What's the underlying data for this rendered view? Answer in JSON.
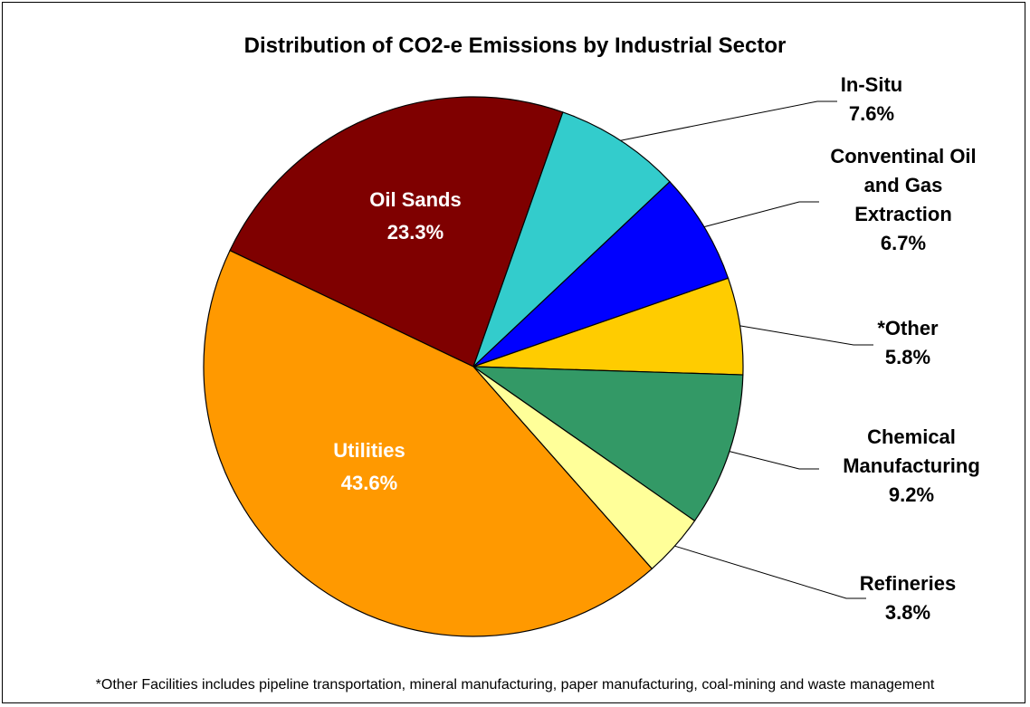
{
  "chart_data": {
    "type": "pie",
    "title": "Distribution of CO2-e Emissions by Industrial Sector",
    "slices": [
      {
        "label": "Oil Sands",
        "value": 23.3,
        "value_label": "23.3%",
        "color": "#7f0000",
        "label_placement": "inside",
        "label_color": "#ffffff"
      },
      {
        "label": "In-Situ",
        "value": 7.6,
        "value_label": "7.6%",
        "color": "#33cccc",
        "label_placement": "outside",
        "label_color": "#000000"
      },
      {
        "label": "Conventinal Oil and Gas Extraction",
        "value": 6.7,
        "value_label": "6.7%",
        "color": "#0000ff",
        "label_placement": "outside",
        "label_color": "#000000"
      },
      {
        "label": "*Other",
        "value": 5.8,
        "value_label": "5.8%",
        "color": "#ffcc00",
        "label_placement": "outside",
        "label_color": "#000000"
      },
      {
        "label": "Chemical Manufacturing",
        "value": 9.2,
        "value_label": "9.2%",
        "color": "#339966",
        "label_placement": "outside",
        "label_color": "#000000"
      },
      {
        "label": "Refineries",
        "value": 3.8,
        "value_label": "3.8%",
        "color": "#ffff99",
        "label_placement": "outside",
        "label_color": "#000000"
      },
      {
        "label": "Utilities",
        "value": 43.6,
        "value_label": "43.6%",
        "color": "#ff9900",
        "label_placement": "inside",
        "label_color": "#ffffff"
      }
    ],
    "footnote": "*Other Facilities includes pipeline transportation, mineral manufacturing, paper manufacturing, coal-mining and waste management"
  }
}
